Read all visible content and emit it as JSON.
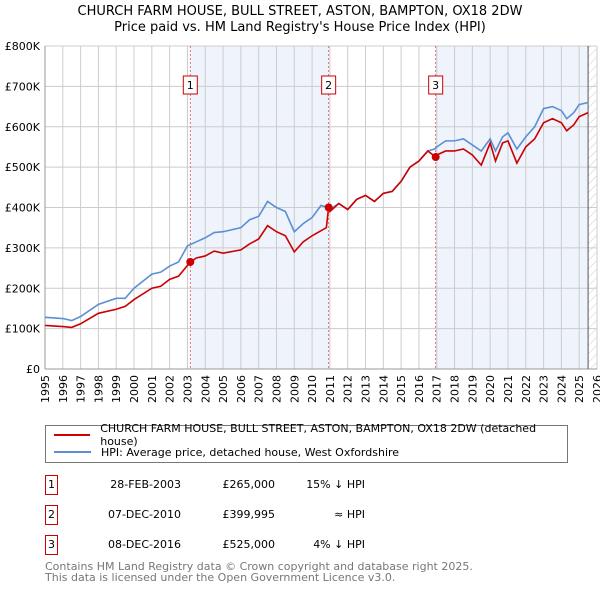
{
  "chart_data": {
    "type": "line",
    "title": "CHURCH FARM HOUSE, BULL STREET, ASTON, BAMPTON, OX18 2DW",
    "subtitle": "Price paid vs. HM Land Registry's House Price Index (HPI)",
    "xlim": [
      1995,
      2026
    ],
    "ylim": [
      0,
      800000
    ],
    "x_ticks": [
      "1995",
      "1996",
      "1997",
      "1998",
      "1999",
      "2000",
      "2001",
      "2002",
      "2003",
      "2004",
      "2005",
      "2006",
      "2007",
      "2008",
      "2009",
      "2010",
      "2011",
      "2012",
      "2013",
      "2014",
      "2015",
      "2016",
      "2017",
      "2018",
      "2019",
      "2020",
      "2021",
      "2022",
      "2023",
      "2024",
      "2025",
      "2026"
    ],
    "y_ticks": [
      {
        "v": 0,
        "label": "£0"
      },
      {
        "v": 100000,
        "label": "£100K"
      },
      {
        "v": 200000,
        "label": "£200K"
      },
      {
        "v": 300000,
        "label": "£300K"
      },
      {
        "v": 400000,
        "label": "£400K"
      },
      {
        "v": 500000,
        "label": "£500K"
      },
      {
        "v": 600000,
        "label": "£600K"
      },
      {
        "v": 700000,
        "label": "£700K"
      },
      {
        "v": 800000,
        "label": "£800K"
      }
    ],
    "grid": true,
    "series": [
      {
        "name": "CHURCH FARM HOUSE, BULL STREET, ASTON, BAMPTON, OX18 2DW (detached house)",
        "color": "#cc0000",
        "x": [
          1995,
          1996,
          1996.5,
          1997,
          1998,
          1999,
          1999.5,
          2000,
          2001,
          2001.5,
          2002,
          2002.5,
          2003.16,
          2003.5,
          2004,
          2004.5,
          2005,
          2006,
          2006.5,
          2007,
          2007.5,
          2008,
          2008.5,
          2009,
          2009.5,
          2010,
          2010.8,
          2010.93,
          2011,
          2011.5,
          2012,
          2012.5,
          2013,
          2013.5,
          2014,
          2014.5,
          2015,
          2015.5,
          2016,
          2016.5,
          2016.94,
          2017,
          2017.5,
          2018,
          2018.5,
          2019,
          2019.5,
          2020,
          2020.3,
          2020.7,
          2021,
          2021.5,
          2022,
          2022.5,
          2023,
          2023.5,
          2024,
          2024.3,
          2024.7,
          2025,
          2025.5
        ],
        "y": [
          108,
          105,
          103,
          112,
          138,
          148,
          155,
          172,
          200,
          205,
          222,
          230,
          265,
          275,
          280,
          292,
          287,
          295,
          310,
          322,
          355,
          340,
          330,
          290,
          315,
          330,
          350,
          400,
          390,
          410,
          395,
          420,
          430,
          415,
          435,
          440,
          465,
          500,
          515,
          540,
          525,
          530,
          540,
          540,
          545,
          530,
          505,
          560,
          515,
          560,
          565,
          510,
          550,
          570,
          610,
          620,
          610,
          590,
          605,
          625,
          635
        ]
      },
      {
        "name": "HPI: Average price, detached house, West Oxfordshire",
        "color": "#5b8fd4",
        "x": [
          1995,
          1996,
          1996.5,
          1997,
          1998,
          1999,
          1999.5,
          2000,
          2001,
          2001.5,
          2002,
          2002.5,
          2003,
          2003.5,
          2004,
          2004.5,
          2005,
          2006,
          2006.5,
          2007,
          2007.5,
          2008,
          2008.5,
          2009,
          2009.5,
          2010,
          2010.5,
          2010.9,
          2011,
          2011.5,
          2012,
          2012.5,
          2013,
          2013.5,
          2014,
          2014.5,
          2015,
          2015.5,
          2016,
          2016.5,
          2016.9,
          2017,
          2017.5,
          2018,
          2018.5,
          2019,
          2019.5,
          2020,
          2020.3,
          2020.7,
          2021,
          2021.5,
          2022,
          2022.5,
          2023,
          2023.5,
          2024,
          2024.3,
          2024.7,
          2025,
          2025.5
        ],
        "y": [
          128,
          125,
          120,
          130,
          160,
          175,
          175,
          200,
          235,
          240,
          255,
          265,
          305,
          315,
          325,
          338,
          340,
          350,
          370,
          378,
          415,
          400,
          390,
          340,
          360,
          375,
          405,
          400,
          395,
          410,
          395,
          420,
          430,
          415,
          435,
          440,
          465,
          500,
          515,
          540,
          545,
          550,
          565,
          565,
          570,
          555,
          540,
          570,
          540,
          575,
          585,
          545,
          575,
          600,
          645,
          650,
          640,
          620,
          635,
          655,
          660
        ]
      }
    ],
    "y_unit": "thousands GBP",
    "sales": [
      {
        "num": "1",
        "x": 2003.16,
        "y": 265,
        "date": "28-FEB-2003",
        "price": "£265,000",
        "hpi": "15% ↓ HPI"
      },
      {
        "num": "2",
        "x": 2010.93,
        "y": 400,
        "date": "07-DEC-2010",
        "price": "£399,995",
        "hpi": "≈ HPI"
      },
      {
        "num": "3",
        "x": 2016.94,
        "y": 525,
        "date": "08-DEC-2016",
        "price": "£525,000",
        "hpi": "4% ↓ HPI"
      }
    ],
    "forecast_from": 2025.5
  },
  "footer": {
    "line1": "Contains HM Land Registry data © Crown copyright and database right 2025.",
    "line2": "This data is licensed under the Open Government Licence v3.0."
  }
}
